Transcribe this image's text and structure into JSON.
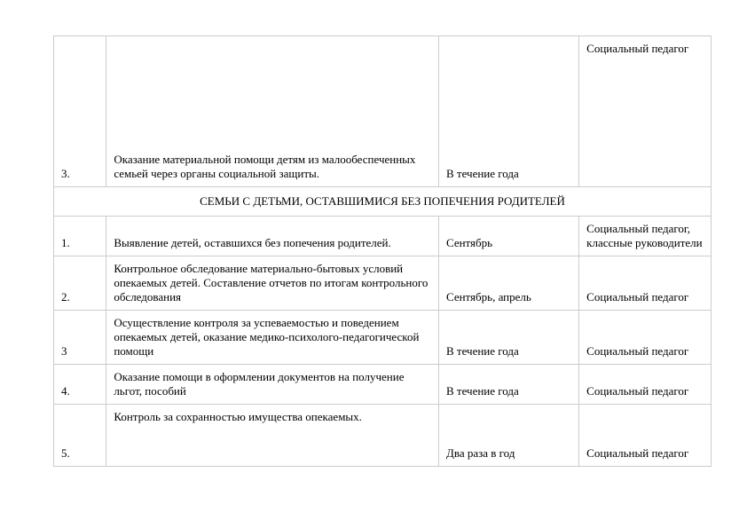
{
  "table": {
    "row_top": {
      "num": "3.",
      "desc": "Оказание материальной помощи детям из малообеспеченных семьей через органы социальной защиты.",
      "time": "В течение года",
      "resp": "Социальный педагог"
    },
    "section_header": "СЕМЬИ С ДЕТЬМИ, ОСТАВШИМИСЯ БЕЗ ПОПЕЧЕНИЯ РОДИТЕЛЕЙ",
    "rows": [
      {
        "num": "1.",
        "desc": "Выявление детей, оставшихся без попечения родителей.",
        "time": "Сентябрь",
        "resp": "Социальный педагог, классные руководители"
      },
      {
        "num": "2.",
        "desc": "Контрольное обследование материально-бытовых условий опекаемых детей. Составление отчетов по итогам контрольного обследования",
        "time": "Сентябрь, апрель",
        "resp": "Социальный педагог"
      },
      {
        "num": "3",
        "desc": "Осуществление контроля за успеваемостью и поведением опекаемых детей, оказание медико-психолого-педагогической помощи",
        "time": "В течение года",
        "resp": "Социальный педагог"
      },
      {
        "num": "4.",
        "desc": "Оказание помощи в оформлении документов на получение льгот, пособий",
        "time": "В течение года",
        "resp": "Социальный педагог"
      },
      {
        "num": "5.",
        "desc": "Контроль за сохранностью имущества опекаемых.",
        "time": "Два раза в год",
        "resp": "Социальный педагог"
      }
    ]
  }
}
